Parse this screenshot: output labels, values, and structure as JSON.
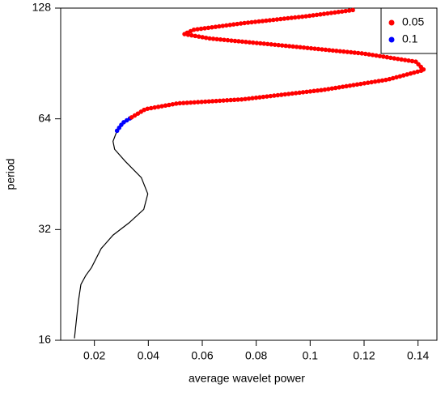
{
  "chart_data": {
    "type": "line",
    "xlabel": "average wavelet power",
    "ylabel": "period",
    "xlim": [
      0.0075,
      0.147
    ],
    "ylim": [
      16,
      128
    ],
    "ylog": true,
    "xticks": [
      0.02,
      0.04,
      0.06,
      0.08,
      0.1,
      0.12,
      0.14
    ],
    "yticks": [
      16,
      32,
      64,
      128
    ],
    "legend": "top-right",
    "series": [
      {
        "color": "#000000",
        "style": "line",
        "x": [
          0.0126,
          0.0141,
          0.015,
          0.0168,
          0.0189,
          0.0225,
          0.0269,
          0.0329,
          0.0383,
          0.0398,
          0.0374,
          0.0314,
          0.0275,
          0.0269,
          0.0284
        ],
        "values": [
          16.2,
          20.5,
          22.7,
          24,
          25.2,
          28.4,
          30.9,
          33.4,
          36.3,
          40,
          44.3,
          49.1,
          52.9,
          55.6,
          59.4
        ]
      },
      {
        "name": "0.1",
        "color": "#0000ff",
        "style": "dots",
        "x": [
          0.0284,
          0.0305,
          0.0338
        ],
        "values": [
          59.4,
          62.4,
          64.6
        ]
      },
      {
        "name": "0.05",
        "color": "#ff0000",
        "style": "dots",
        "x": [
          0.0338,
          0.0389,
          0.0509,
          0.0749,
          0.1048,
          0.1287,
          0.1422,
          0.1392,
          0.1198,
          0.0898,
          0.0629,
          0.0533,
          0.0569,
          0.0749,
          0.0988,
          0.1168
        ],
        "values": [
          64.6,
          68,
          70.5,
          72.3,
          76.7,
          81.8,
          86.9,
          91.5,
          96.3,
          101.3,
          105.8,
          108.8,
          111.8,
          116.4,
          121.7,
          126.7
        ]
      }
    ]
  }
}
